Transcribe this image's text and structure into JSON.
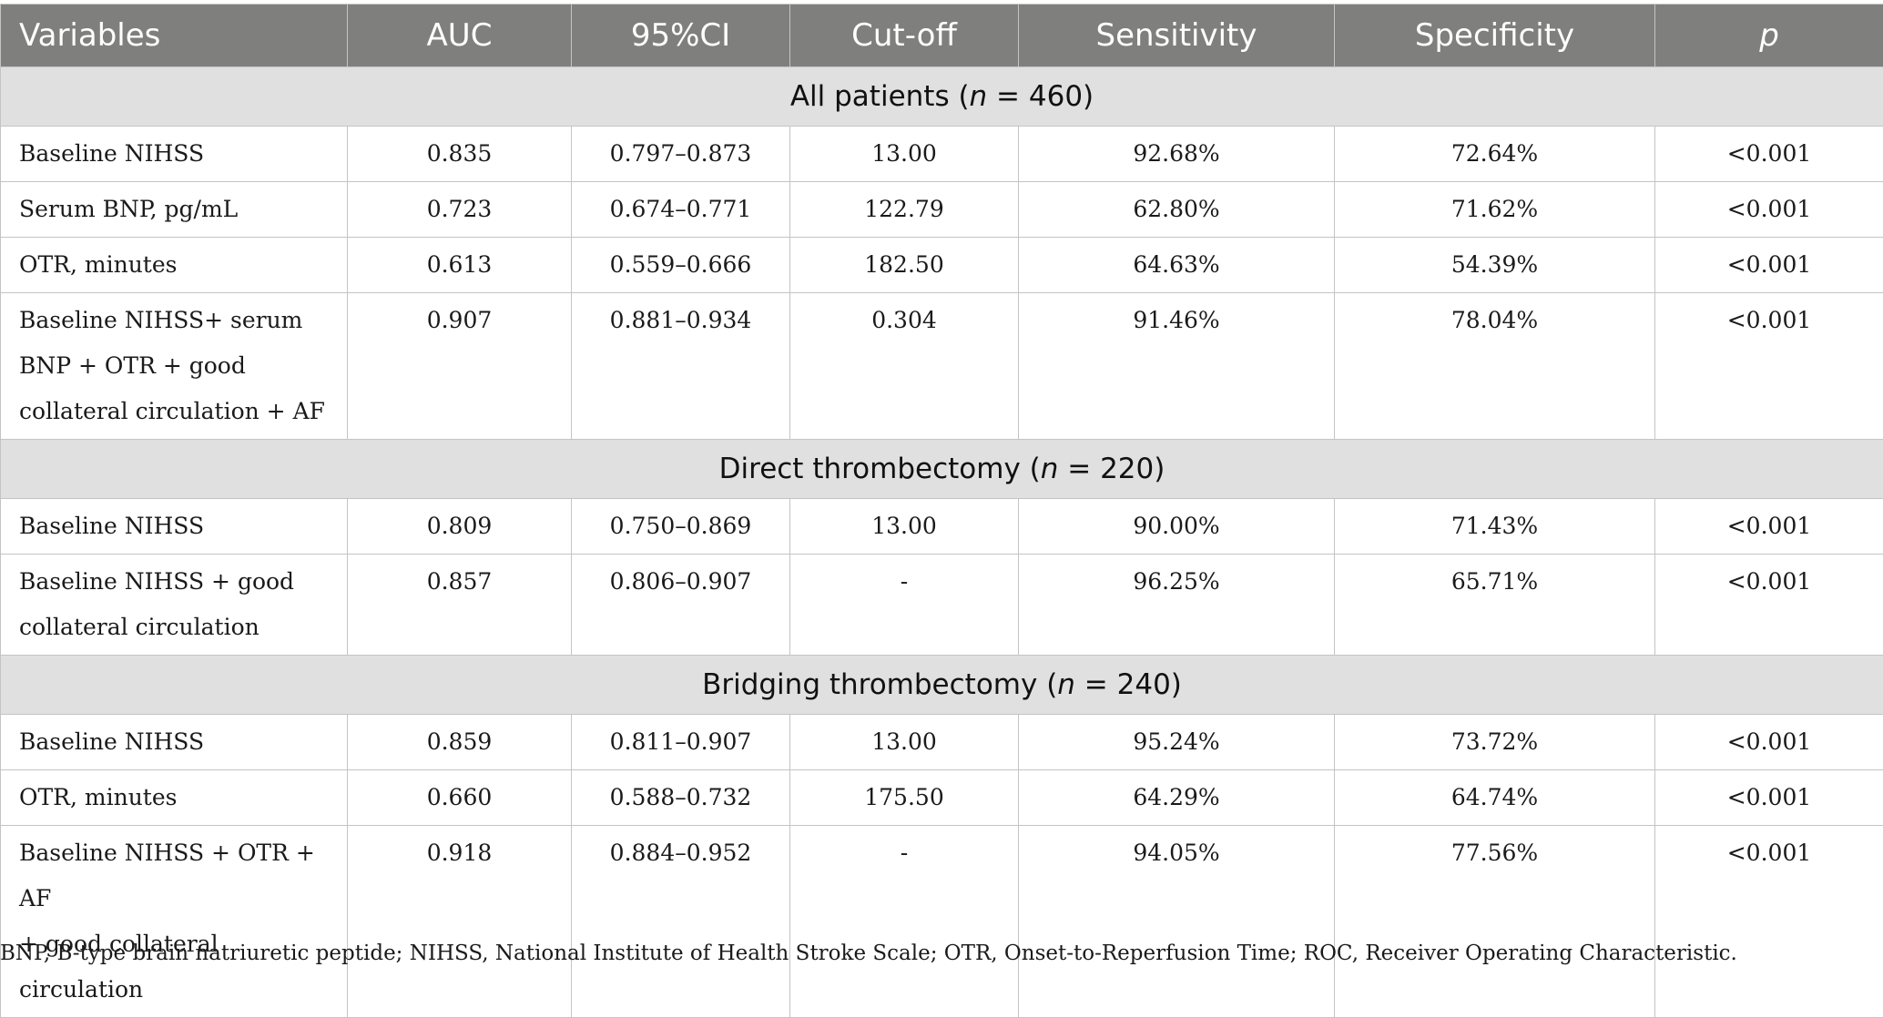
{
  "table": {
    "columns": [
      "Variables",
      "AUC",
      "95%CI",
      "Cut-off",
      "Sensitivity",
      "Specificity",
      "p"
    ],
    "sections": [
      {
        "label_prefix": "All patients (",
        "n_symbol": "n",
        "label_suffix": " = 460)",
        "rows": [
          {
            "variable": "Baseline NIHSS",
            "auc": "0.835",
            "ci": "0.797–0.873",
            "cutoff": "13.00",
            "sensitivity": "92.68%",
            "specificity": "72.64%",
            "p": "<0.001"
          },
          {
            "variable": "Serum BNP, pg/mL",
            "auc": "0.723",
            "ci": "0.674–0.771",
            "cutoff": "122.79",
            "sensitivity": "62.80%",
            "specificity": "71.62%",
            "p": "<0.001"
          },
          {
            "variable": "OTR, minutes",
            "auc": "0.613",
            "ci": "0.559–0.666",
            "cutoff": "182.50",
            "sensitivity": "64.63%",
            "specificity": "54.39%",
            "p": "<0.001"
          },
          {
            "variable_lines": [
              "Baseline NIHSS+ serum",
              "BNP + OTR + good",
              "collateral circulation + AF"
            ],
            "auc": "0.907",
            "ci": "0.881–0.934",
            "cutoff": "0.304",
            "sensitivity": "91.46%",
            "specificity": "78.04%",
            "p": "<0.001"
          }
        ]
      },
      {
        "label_prefix": "Direct thrombectomy (",
        "n_symbol": "n",
        "label_suffix": " = 220)",
        "rows": [
          {
            "variable": "Baseline NIHSS",
            "auc": "0.809",
            "ci": "0.750–0.869",
            "cutoff": "13.00",
            "sensitivity": "90.00%",
            "specificity": "71.43%",
            "p": "<0.001"
          },
          {
            "variable_lines": [
              "Baseline NIHSS + good",
              "collateral circulation"
            ],
            "auc": "0.857",
            "ci": "0.806–0.907",
            "cutoff": "-",
            "sensitivity": "96.25%",
            "specificity": "65.71%",
            "p": "<0.001"
          }
        ]
      },
      {
        "label_prefix": "Bridging thrombectomy (",
        "n_symbol": "n",
        "label_suffix": " = 240)",
        "rows": [
          {
            "variable": "Baseline NIHSS",
            "auc": "0.859",
            "ci": "0.811–0.907",
            "cutoff": "13.00",
            "sensitivity": "95.24%",
            "specificity": "73.72%",
            "p": "<0.001"
          },
          {
            "variable": "OTR, minutes",
            "auc": "0.660",
            "ci": "0.588–0.732",
            "cutoff": "175.50",
            "sensitivity": "64.29%",
            "specificity": "64.74%",
            "p": "<0.001"
          },
          {
            "variable_lines": [
              "Baseline NIHSS + OTR + AF",
              "+ good collateral circulation"
            ],
            "auc": "0.918",
            "ci": "0.884–0.952",
            "cutoff": "-",
            "sensitivity": "94.05%",
            "specificity": "77.56%",
            "p": "<0.001"
          }
        ]
      }
    ]
  },
  "footnote": "BNP, B-type brain natriuretic peptide; NIHSS, National Institute of Health Stroke Scale; OTR, Onset-to-Reperfusion Time; ROC, Receiver Operating Characteristic."
}
